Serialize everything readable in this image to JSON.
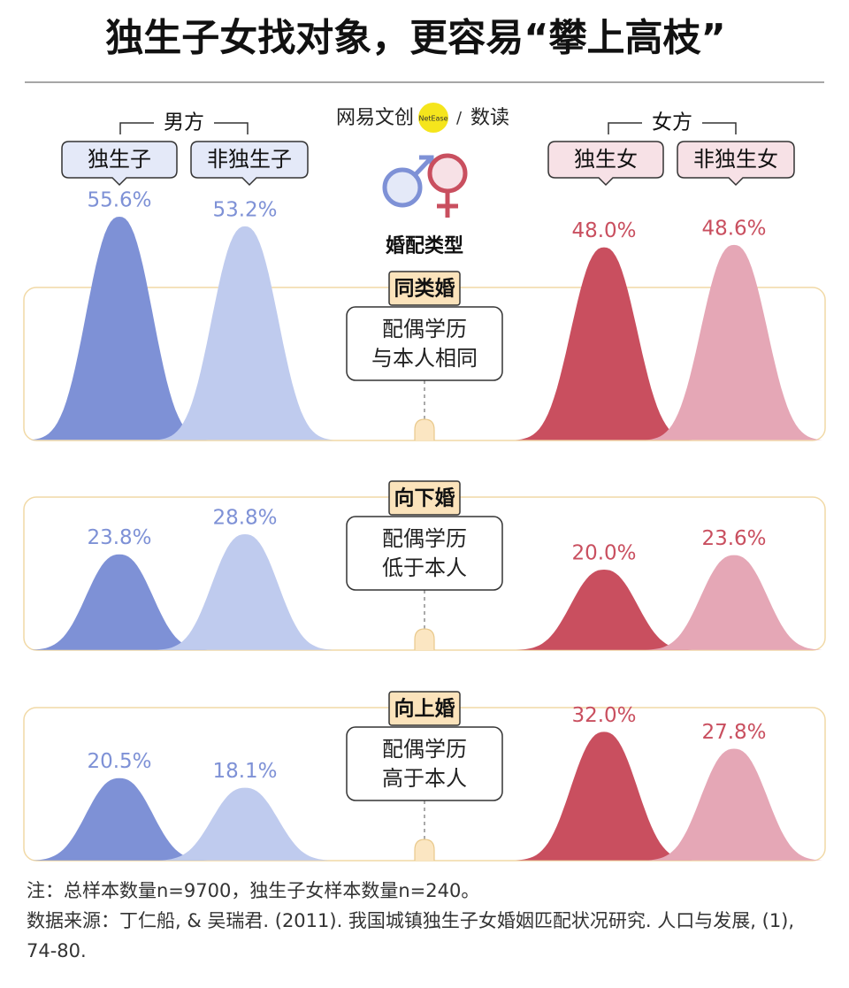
{
  "chart_data": {
    "type": "bell",
    "title": "独生子女找对象，更容易“攀上高枝”",
    "brand": {
      "name": "网易文创",
      "badge": "NetEase",
      "column": "数读"
    },
    "center_label": "婚配类型",
    "groups": [
      {
        "name": "男方"
      },
      {
        "name": "女方"
      }
    ],
    "categories": [
      "同类婚",
      "向下婚",
      "向上婚"
    ],
    "category_descriptions": [
      [
        "配偶学历",
        "与本人相同"
      ],
      [
        "配偶学历",
        "低于本人"
      ],
      [
        "配偶学历",
        "高于本人"
      ]
    ],
    "series": [
      {
        "name": "独生子",
        "color": "#7e91d6",
        "values": [
          55.6,
          23.8,
          20.5
        ],
        "value_labels": [
          "55.6%",
          "23.8%",
          "20.5%"
        ]
      },
      {
        "name": "非独生子",
        "color": "#bfcbee",
        "values": [
          53.2,
          28.8,
          18.1
        ],
        "value_labels": [
          "53.2%",
          "28.8%",
          "18.1%"
        ]
      },
      {
        "name": "独生女",
        "color": "#c94f5f",
        "values": [
          48.0,
          20.0,
          32.0
        ],
        "value_labels": [
          "48.0%",
          "20.0%",
          "32.0%"
        ]
      },
      {
        "name": "非独生女",
        "color": "#e5a7b6",
        "values": [
          48.6,
          23.6,
          27.8
        ],
        "value_labels": [
          "48.6%",
          "23.6%",
          "27.8%"
        ]
      }
    ],
    "note": "注：总样本数量n=9700，独生子女样本数量n=240。",
    "source": "数据来源：丁仁船, & 吴瑞君. (2011). 我国城镇独生子女婚姻匹配状况研究. 人口与发展, (1), 74-80."
  }
}
